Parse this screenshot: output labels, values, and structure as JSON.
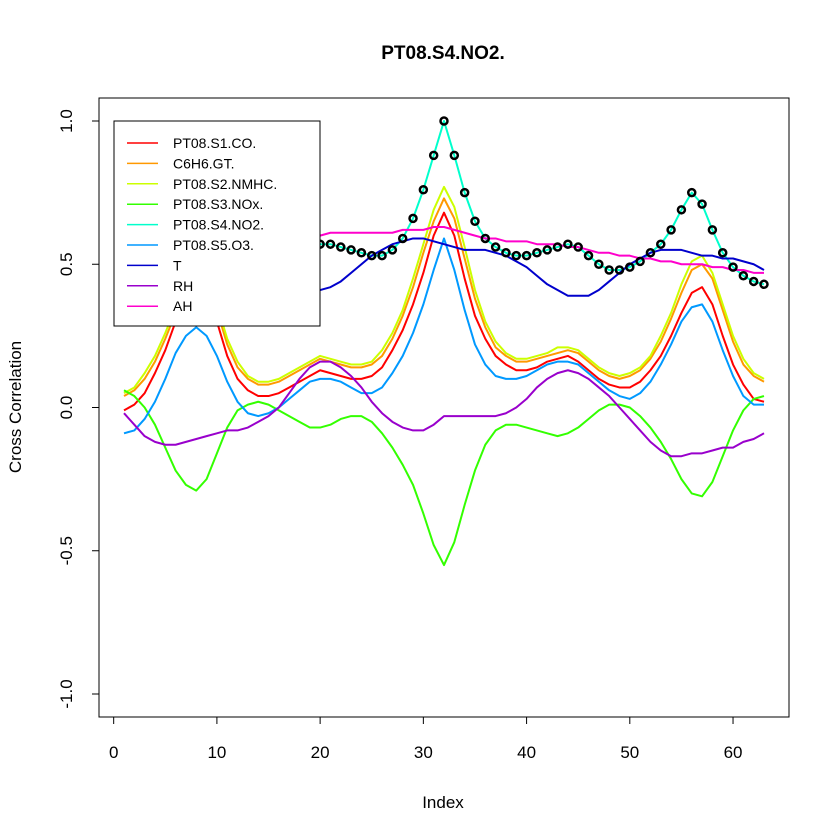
{
  "chart_data": {
    "type": "line",
    "title": "PT08.S4.NO2.",
    "xlabel": "Index",
    "ylabel": "Cross Correlation",
    "xlim": [
      1,
      63
    ],
    "ylim": [
      -1.0,
      1.0
    ],
    "xticks": [
      0,
      10,
      20,
      30,
      40,
      50,
      60
    ],
    "xtick_labels": [
      "0",
      "10",
      "20",
      "30",
      "40",
      "50",
      "60"
    ],
    "yticks": [
      -1.0,
      -0.5,
      0.0,
      0.5,
      1.0
    ],
    "ytick_labels": [
      "-1.0",
      "-0.5",
      "0.0",
      "0.5",
      "1.0"
    ],
    "grid": false,
    "legend_position": "top-left",
    "x": [
      1,
      2,
      3,
      4,
      5,
      6,
      7,
      8,
      9,
      10,
      11,
      12,
      13,
      14,
      15,
      16,
      17,
      18,
      19,
      20,
      21,
      22,
      23,
      24,
      25,
      26,
      27,
      28,
      29,
      30,
      31,
      32,
      33,
      34,
      35,
      36,
      37,
      38,
      39,
      40,
      41,
      42,
      43,
      44,
      45,
      46,
      47,
      48,
      49,
      50,
      51,
      52,
      53,
      54,
      55,
      56,
      57,
      58,
      59,
      60,
      61,
      62,
      63
    ],
    "series": [
      {
        "name": "PT08.S1.CO.",
        "color": "#ff0000",
        "values": [
          -0.01,
          0.01,
          0.05,
          0.12,
          0.2,
          0.3,
          0.4,
          0.46,
          0.42,
          0.3,
          0.18,
          0.1,
          0.06,
          0.04,
          0.04,
          0.05,
          0.07,
          0.09,
          0.11,
          0.13,
          0.12,
          0.11,
          0.1,
          0.1,
          0.11,
          0.14,
          0.2,
          0.27,
          0.36,
          0.47,
          0.6,
          0.68,
          0.6,
          0.45,
          0.32,
          0.24,
          0.18,
          0.15,
          0.13,
          0.13,
          0.14,
          0.16,
          0.17,
          0.18,
          0.16,
          0.13,
          0.1,
          0.08,
          0.07,
          0.07,
          0.09,
          0.13,
          0.18,
          0.25,
          0.33,
          0.4,
          0.42,
          0.36,
          0.25,
          0.15,
          0.08,
          0.03,
          0.02
        ]
      },
      {
        "name": "C6H6.GT.",
        "color": "#ff9900",
        "values": [
          0.04,
          0.06,
          0.1,
          0.16,
          0.24,
          0.33,
          0.42,
          0.48,
          0.44,
          0.34,
          0.22,
          0.14,
          0.1,
          0.08,
          0.08,
          0.09,
          0.11,
          0.13,
          0.15,
          0.17,
          0.16,
          0.15,
          0.14,
          0.14,
          0.15,
          0.18,
          0.24,
          0.32,
          0.42,
          0.54,
          0.65,
          0.73,
          0.66,
          0.52,
          0.38,
          0.28,
          0.21,
          0.18,
          0.16,
          0.16,
          0.17,
          0.18,
          0.19,
          0.2,
          0.19,
          0.16,
          0.13,
          0.11,
          0.1,
          0.11,
          0.13,
          0.17,
          0.23,
          0.31,
          0.4,
          0.48,
          0.5,
          0.45,
          0.34,
          0.23,
          0.15,
          0.11,
          0.09
        ]
      },
      {
        "name": "PT08.S2.NMHC.",
        "color": "#ccff00",
        "values": [
          0.05,
          0.07,
          0.12,
          0.18,
          0.26,
          0.35,
          0.44,
          0.5,
          0.46,
          0.36,
          0.24,
          0.16,
          0.11,
          0.09,
          0.09,
          0.1,
          0.12,
          0.14,
          0.16,
          0.18,
          0.17,
          0.16,
          0.15,
          0.15,
          0.16,
          0.2,
          0.26,
          0.34,
          0.45,
          0.57,
          0.69,
          0.77,
          0.7,
          0.56,
          0.41,
          0.3,
          0.23,
          0.19,
          0.17,
          0.17,
          0.18,
          0.19,
          0.21,
          0.21,
          0.2,
          0.17,
          0.14,
          0.12,
          0.11,
          0.12,
          0.14,
          0.18,
          0.25,
          0.33,
          0.43,
          0.51,
          0.53,
          0.47,
          0.36,
          0.25,
          0.17,
          0.12,
          0.1
        ]
      },
      {
        "name": "PT08.S3.NOx.",
        "color": "#33ff00",
        "values": [
          0.06,
          0.04,
          0.0,
          -0.06,
          -0.14,
          -0.22,
          -0.27,
          -0.29,
          -0.25,
          -0.16,
          -0.07,
          -0.01,
          0.01,
          0.02,
          0.01,
          -0.01,
          -0.03,
          -0.05,
          -0.07,
          -0.07,
          -0.06,
          -0.04,
          -0.03,
          -0.03,
          -0.05,
          -0.09,
          -0.14,
          -0.2,
          -0.27,
          -0.37,
          -0.48,
          -0.55,
          -0.47,
          -0.34,
          -0.22,
          -0.13,
          -0.08,
          -0.06,
          -0.06,
          -0.07,
          -0.08,
          -0.09,
          -0.1,
          -0.09,
          -0.07,
          -0.04,
          -0.01,
          0.01,
          0.01,
          0.0,
          -0.03,
          -0.07,
          -0.12,
          -0.18,
          -0.25,
          -0.3,
          -0.31,
          -0.26,
          -0.17,
          -0.08,
          -0.01,
          0.03,
          0.04
        ]
      },
      {
        "name": "PT08.S4.NO2.",
        "color": "#00ffcc",
        "values": [
          0.48,
          0.49,
          0.5,
          0.51,
          0.52,
          0.53,
          0.54,
          0.55,
          0.55,
          0.55,
          0.56,
          0.56,
          0.56,
          0.57,
          0.57,
          0.57,
          0.57,
          0.57,
          0.57,
          0.57,
          0.57,
          0.56,
          0.55,
          0.54,
          0.53,
          0.53,
          0.55,
          0.59,
          0.66,
          0.76,
          0.88,
          1.0,
          0.88,
          0.75,
          0.65,
          0.59,
          0.56,
          0.54,
          0.53,
          0.53,
          0.54,
          0.55,
          0.56,
          0.57,
          0.56,
          0.53,
          0.5,
          0.48,
          0.48,
          0.49,
          0.51,
          0.54,
          0.57,
          0.62,
          0.69,
          0.75,
          0.71,
          0.62,
          0.54,
          0.49,
          0.46,
          0.44,
          0.43
        ]
      },
      {
        "name": "PT08.S5.O3.",
        "color": "#0099ff",
        "values": [
          -0.09,
          -0.08,
          -0.04,
          0.02,
          0.1,
          0.19,
          0.25,
          0.28,
          0.25,
          0.18,
          0.09,
          0.02,
          -0.02,
          -0.03,
          -0.02,
          0.0,
          0.03,
          0.06,
          0.09,
          0.1,
          0.1,
          0.09,
          0.07,
          0.05,
          0.05,
          0.07,
          0.12,
          0.18,
          0.26,
          0.36,
          0.48,
          0.59,
          0.48,
          0.34,
          0.22,
          0.15,
          0.11,
          0.1,
          0.1,
          0.11,
          0.13,
          0.15,
          0.16,
          0.16,
          0.15,
          0.12,
          0.09,
          0.06,
          0.04,
          0.03,
          0.05,
          0.09,
          0.15,
          0.22,
          0.3,
          0.35,
          0.36,
          0.3,
          0.2,
          0.11,
          0.04,
          0.01,
          0.01
        ]
      },
      {
        "name": "T",
        "color": "#0000cc",
        "values": [
          0.42,
          0.43,
          0.44,
          0.45,
          0.46,
          0.47,
          0.47,
          0.48,
          0.48,
          0.47,
          0.46,
          0.45,
          0.44,
          0.43,
          0.42,
          0.42,
          0.41,
          0.41,
          0.41,
          0.41,
          0.42,
          0.44,
          0.47,
          0.5,
          0.53,
          0.55,
          0.57,
          0.58,
          0.59,
          0.59,
          0.58,
          0.57,
          0.56,
          0.55,
          0.55,
          0.55,
          0.54,
          0.53,
          0.51,
          0.49,
          0.46,
          0.43,
          0.41,
          0.39,
          0.39,
          0.39,
          0.41,
          0.44,
          0.47,
          0.5,
          0.52,
          0.54,
          0.55,
          0.55,
          0.55,
          0.54,
          0.53,
          0.53,
          0.52,
          0.52,
          0.51,
          0.5,
          0.48
        ]
      },
      {
        "name": "RH",
        "color": "#9900cc",
        "values": [
          -0.02,
          -0.06,
          -0.1,
          -0.12,
          -0.13,
          -0.13,
          -0.12,
          -0.11,
          -0.1,
          -0.09,
          -0.08,
          -0.08,
          -0.07,
          -0.05,
          -0.03,
          0.0,
          0.05,
          0.1,
          0.14,
          0.16,
          0.16,
          0.14,
          0.11,
          0.07,
          0.02,
          -0.02,
          -0.05,
          -0.07,
          -0.08,
          -0.08,
          -0.06,
          -0.03,
          -0.03,
          -0.03,
          -0.03,
          -0.03,
          -0.03,
          -0.02,
          0.0,
          0.03,
          0.07,
          0.1,
          0.12,
          0.13,
          0.12,
          0.1,
          0.07,
          0.04,
          0.0,
          -0.04,
          -0.08,
          -0.12,
          -0.15,
          -0.17,
          -0.17,
          -0.16,
          -0.16,
          -0.15,
          -0.14,
          -0.14,
          -0.12,
          -0.11,
          -0.09
        ]
      },
      {
        "name": "AH",
        "color": "#ff00cc",
        "values": [
          0.51,
          0.52,
          0.53,
          0.54,
          0.55,
          0.55,
          0.56,
          0.56,
          0.56,
          0.57,
          0.57,
          0.57,
          0.57,
          0.58,
          0.58,
          0.59,
          0.59,
          0.6,
          0.6,
          0.6,
          0.61,
          0.61,
          0.61,
          0.61,
          0.61,
          0.61,
          0.61,
          0.62,
          0.62,
          0.62,
          0.63,
          0.63,
          0.62,
          0.61,
          0.6,
          0.59,
          0.59,
          0.58,
          0.58,
          0.58,
          0.57,
          0.57,
          0.57,
          0.56,
          0.56,
          0.55,
          0.54,
          0.54,
          0.53,
          0.53,
          0.52,
          0.52,
          0.51,
          0.51,
          0.5,
          0.5,
          0.5,
          0.49,
          0.49,
          0.48,
          0.48,
          0.47,
          0.47
        ]
      }
    ],
    "highlight_series": "PT08.S4.NO2.",
    "highlight_marker": "circle"
  }
}
